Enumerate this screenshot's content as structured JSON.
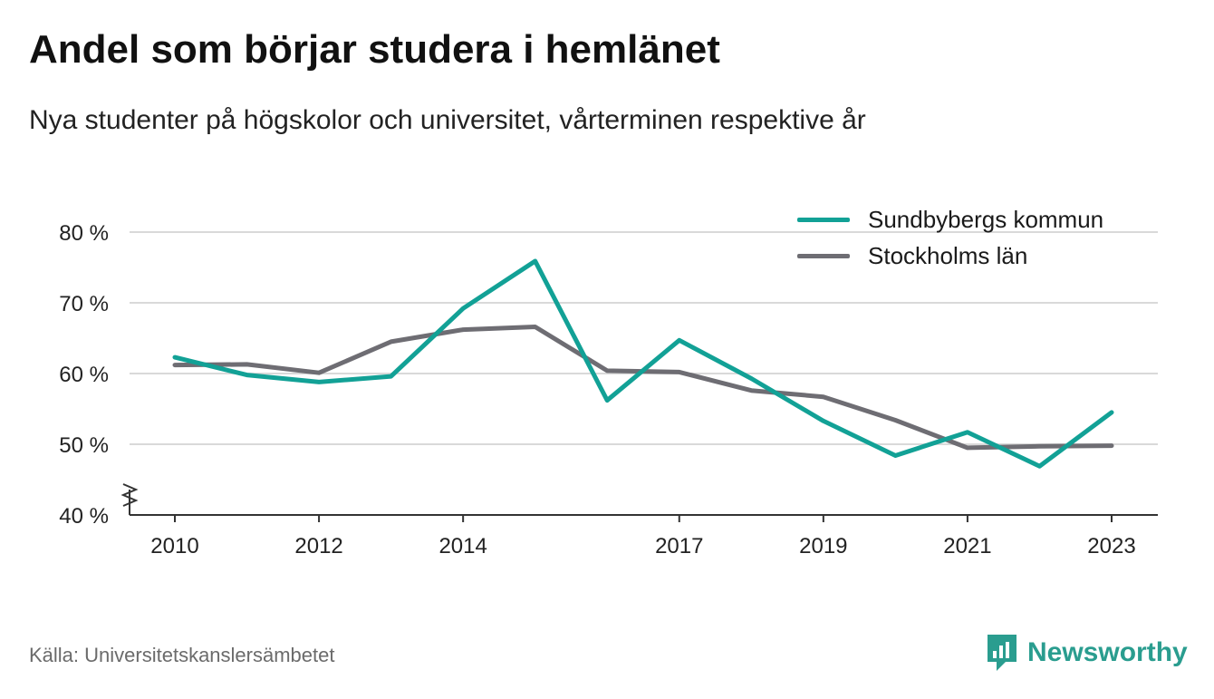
{
  "header": {
    "title": "Andel som börjar studera i hemlänet",
    "subtitle": "Nya studenter på högskolor och universitet, vårterminen respektive år"
  },
  "footer": {
    "source": "Källa: Universitetskanslersämbetet",
    "brand": "Newsworthy"
  },
  "colors": {
    "sundbyberg": "#12a196",
    "stockholm": "#6e6d73",
    "grid": "#d9d9d9",
    "axis": "#333333",
    "brand": "#2a9d8f"
  },
  "chart_data": {
    "type": "line",
    "x": [
      2010,
      2011,
      2012,
      2013,
      2014,
      2015,
      2016,
      2017,
      2018,
      2019,
      2020,
      2021,
      2022,
      2023
    ],
    "x_tick_labels": [
      "2010",
      "2012",
      "2014",
      "2017",
      "2019",
      "2021",
      "2023"
    ],
    "x_tick_values": [
      2010,
      2012,
      2014,
      2017,
      2019,
      2021,
      2023
    ],
    "y_tick_labels": [
      "40 %",
      "50 %",
      "60 %",
      "70 %",
      "80 %"
    ],
    "y_tick_values": [
      40,
      50,
      60,
      70,
      80
    ],
    "ylim": [
      40,
      80
    ],
    "xlim": [
      2010,
      2023
    ],
    "grid": true,
    "legend_position": "top-right",
    "axis_break": true,
    "series": [
      {
        "name": "Sundbybergs kommun",
        "color": "#12a196",
        "values": [
          62.3,
          59.8,
          58.8,
          59.6,
          69.2,
          75.9,
          56.2,
          64.7,
          59.3,
          53.3,
          48.4,
          51.7,
          46.9,
          54.5
        ]
      },
      {
        "name": "Stockholms län",
        "color": "#6e6d73",
        "values": [
          61.2,
          61.3,
          60.1,
          64.5,
          66.2,
          66.6,
          60.4,
          60.2,
          57.6,
          56.7,
          53.4,
          49.5,
          49.7,
          49.8
        ]
      }
    ]
  }
}
